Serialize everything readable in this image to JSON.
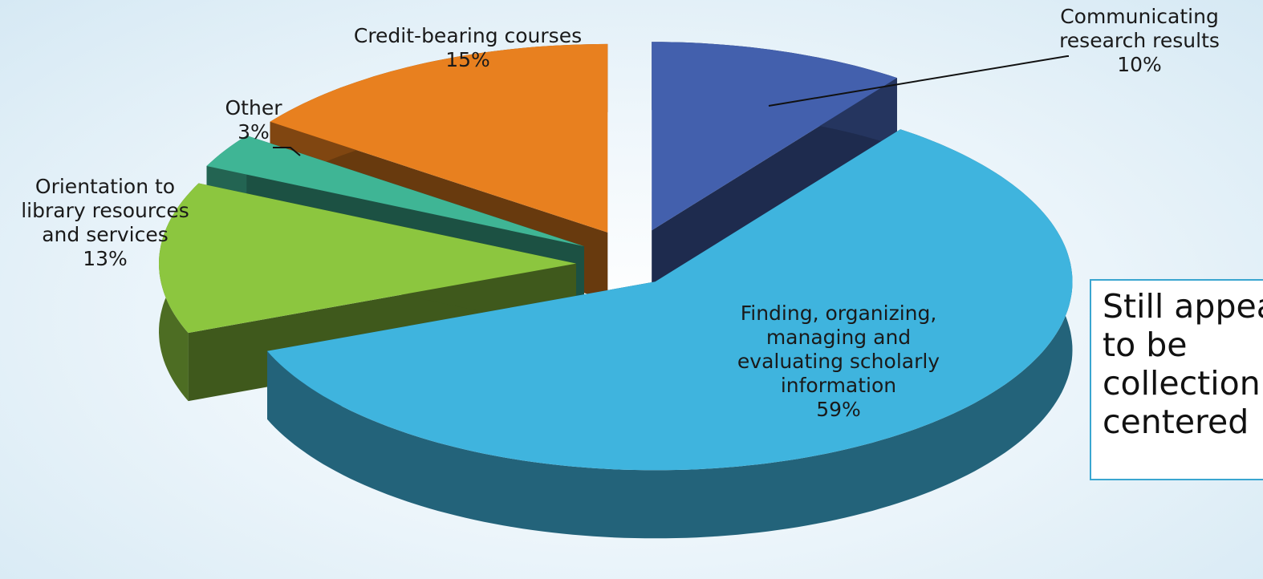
{
  "chart_data": {
    "type": "pie",
    "categories": [
      "Communicating research results",
      "Finding, organizing, managing and evaluating scholarly information",
      "Orientation to library resources and services",
      "Other",
      "Credit-bearing courses"
    ],
    "values": [
      10,
      59,
      13,
      3,
      15
    ],
    "value_labels": [
      "10%",
      "59%",
      "13%",
      "3%",
      "15%"
    ],
    "colors": [
      "#4360ad",
      "#3fb4de",
      "#8cc63f",
      "#3fb595",
      "#e8801f"
    ],
    "annotation": "Still appears to be collection centered"
  }
}
